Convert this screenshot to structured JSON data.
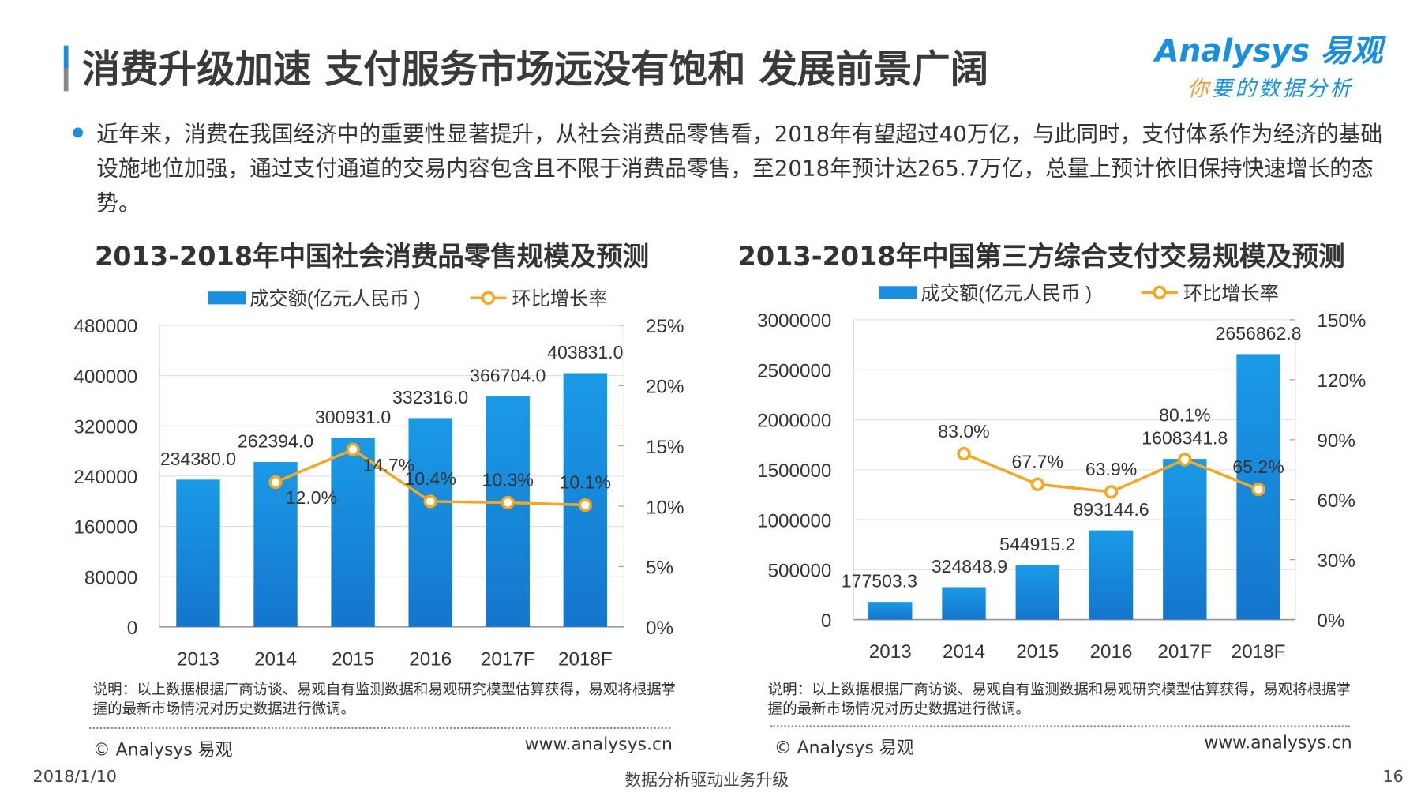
{
  "header": {
    "title": "消费升级加速  支付服务市场远没有饱和  发展前景广阔",
    "logo_en": "Analysys 易观",
    "logo_cn_first": "你",
    "logo_cn_rest": "要的数据分析"
  },
  "summary": "近年来，消费在我国经济中的重要性显著提升，从社会消费品零售看，2018年有望超过40万亿，与此同时，支付体系作为经济的基础设施地位加强，通过支付通道的交易内容包含且不限于消费品零售，至2018年预计达265.7万亿，总量上预计依旧保持快速增长的态势。",
  "colors": {
    "bar": "#1a8fe0",
    "line": "#f5a623",
    "accent": "#1a8fe0"
  },
  "chart_data": [
    {
      "type": "bar+line",
      "title": "2013-2018年中国社会消费品零售规模及预测",
      "categories": [
        "2013",
        "2014",
        "2015",
        "2016",
        "2017F",
        "2018F"
      ],
      "series": [
        {
          "name": "成交额(亿元人民币 )",
          "type": "bar",
          "axis": "left",
          "values": [
            234380.0,
            262394.0,
            300931.0,
            332316.0,
            366704.0,
            403831.0
          ],
          "labels": [
            "234380.0",
            "262394.0",
            "300931.0",
            "332316.0",
            "366704.0",
            "403831.0"
          ]
        },
        {
          "name": "环比增长率",
          "type": "line",
          "axis": "right",
          "values": [
            null,
            12.0,
            14.7,
            10.4,
            10.3,
            10.1
          ],
          "labels": [
            "",
            "12.0%",
            "14.7%",
            "10.4%",
            "10.3%",
            "10.1%"
          ]
        }
      ],
      "ylim": [
        0,
        480000
      ],
      "yticks": [
        "0",
        "80000",
        "160000",
        "240000",
        "320000",
        "400000",
        "480000"
      ],
      "y2lim": [
        0,
        25
      ],
      "y2ticks": [
        "0%",
        "5%",
        "10%",
        "15%",
        "20%",
        "25%"
      ],
      "grid": true,
      "legend": "top",
      "note": "说明：以上数据根据厂商访谈、易观自有监测数据和易观研究模型估算获得，易观将根据掌握的最新市场情况对历史数据进行微调。",
      "source": "© Analysys 易观",
      "url": "www.analysys.cn"
    },
    {
      "type": "bar+line",
      "title": "2013-2018年中国第三方综合支付交易规模及预测",
      "categories": [
        "2013",
        "2014",
        "2015",
        "2016",
        "2017F",
        "2018F"
      ],
      "series": [
        {
          "name": "成交额(亿元人民币 )",
          "type": "bar",
          "axis": "left",
          "values": [
            177503.3,
            324848.9,
            544915.2,
            893144.6,
            1608341.8,
            2656862.8
          ],
          "labels": [
            "177503.3",
            "324848.9",
            "544915.2",
            "893144.6",
            "1608341.8",
            "2656862.8"
          ]
        },
        {
          "name": "环比增长率",
          "type": "line",
          "axis": "right",
          "values": [
            null,
            83.0,
            67.7,
            63.9,
            80.1,
            65.2
          ],
          "labels": [
            "",
            "83.0%",
            "67.7%",
            "63.9%",
            "80.1%",
            "65.2%"
          ]
        }
      ],
      "ylim": [
        0,
        3000000
      ],
      "yticks": [
        "0",
        "500000",
        "1000000",
        "1500000",
        "2000000",
        "2500000",
        "3000000"
      ],
      "y2lim": [
        0,
        150
      ],
      "y2ticks": [
        "0%",
        "30%",
        "60%",
        "90%",
        "120%",
        "150%"
      ],
      "grid": true,
      "legend": "top",
      "note": "说明：以上数据根据厂商访谈、易观自有监测数据和易观研究模型估算获得，易观将根据掌握的最新市场情况对历史数据进行微调。",
      "source": "© Analysys 易观",
      "url": "www.analysys.cn"
    }
  ],
  "footer": {
    "date": "2018/1/10",
    "slogan": "数据分析驱动业务升级",
    "page": "16"
  }
}
